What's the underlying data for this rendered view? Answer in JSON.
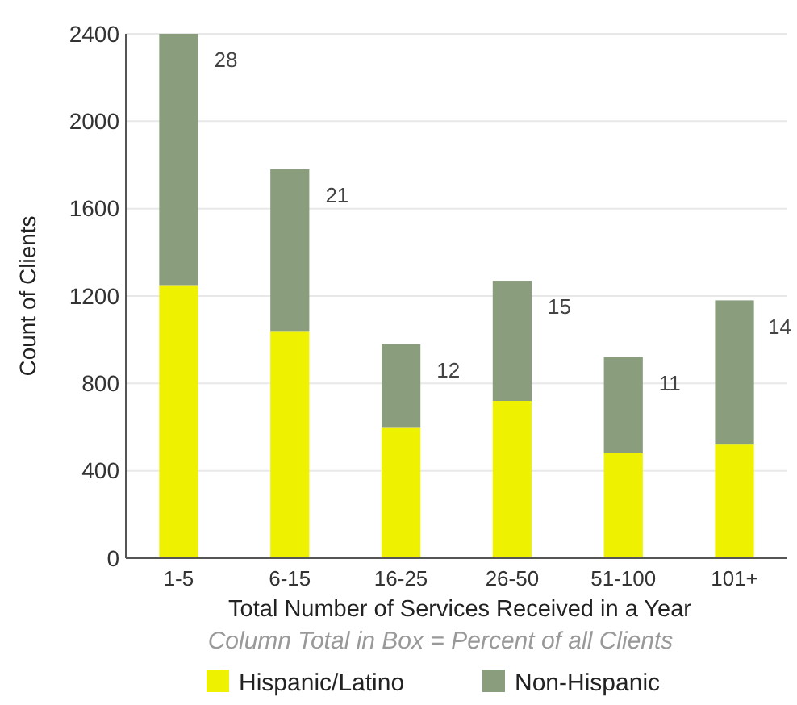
{
  "chart_data": {
    "type": "bar",
    "stacked": true,
    "xlabel": "Total Number of Services Received in a Year",
    "ylabel": "Count of Clients",
    "categories": [
      "1-5",
      "6-15",
      "16-25",
      "26-50",
      "51-100",
      "101+"
    ],
    "series": [
      {
        "name": "Hispanic/Latino",
        "color": "#eef200",
        "values": [
          1250,
          1040,
          600,
          720,
          480,
          520
        ]
      },
      {
        "name": "Non-Hispanic",
        "color": "#8a9e7e",
        "values": [
          1150,
          740,
          380,
          550,
          440,
          660
        ]
      }
    ],
    "ylim": [
      0,
      2400
    ],
    "yticks": [
      0,
      400,
      800,
      1200,
      1600,
      2000,
      2400
    ],
    "grid": "y",
    "legend": "bottom",
    "annotations": [
      {
        "text": "28",
        "x": "1-5",
        "y": 2400
      },
      {
        "text": "21",
        "x": "6-15",
        "y": 1780
      },
      {
        "text": "12",
        "x": "16-25",
        "y": 980
      },
      {
        "text": "15",
        "x": "26-50",
        "y": 1270
      },
      {
        "text": "11",
        "x": "51-100",
        "y": 920
      },
      {
        "text": "14",
        "x": "101+",
        "y": 1180
      },
      "Column Total in Box = Percent of all Clients"
    ]
  }
}
